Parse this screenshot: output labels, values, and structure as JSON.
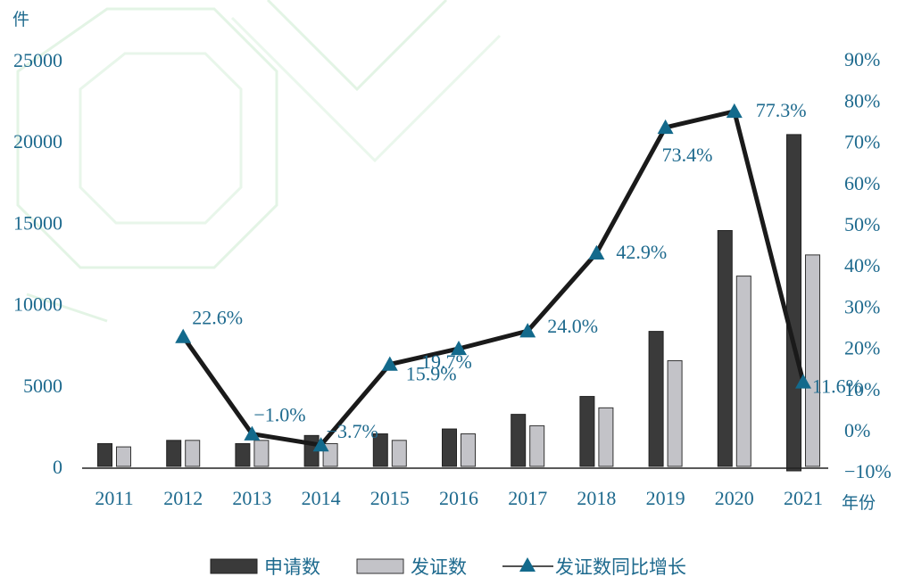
{
  "chart_data": {
    "type": "bar+line",
    "title": "",
    "categories": [
      "2011",
      "2012",
      "2013",
      "2014",
      "2015",
      "2016",
      "2017",
      "2018",
      "2019",
      "2020",
      "2021"
    ],
    "x_unit_label": "年份",
    "y_left_unit_label": "件",
    "y_left_range": [
      0,
      25000
    ],
    "y_left_ticks": [
      "25000",
      "20000",
      "15000",
      "10000",
      "5000",
      "0"
    ],
    "y_right_range": [
      -10,
      90
    ],
    "y_right_ticks": [
      "90%",
      "80%",
      "70%",
      "60%",
      "50%",
      "40%",
      "30%",
      "20%",
      "10%",
      "0%",
      "−10%"
    ],
    "series": [
      {
        "name": "申请数",
        "kind": "bar",
        "color": "#3a3a3a",
        "values": [
          1400,
          1600,
          1400,
          1900,
          2000,
          2300,
          3200,
          4300,
          8300,
          14500,
          20400
        ]
      },
      {
        "name": "发证数",
        "kind": "bar",
        "color": "#c3c3c8",
        "values": [
          1200,
          1600,
          1600,
          1400,
          1600,
          2000,
          2500,
          3600,
          6500,
          11700,
          13000
        ]
      },
      {
        "name": "发证数同比增长",
        "kind": "line",
        "axis": "right",
        "color": "#1a1a1a",
        "marker_color": "#136a8c",
        "values": [
          null,
          22.6,
          -1.0,
          -3.7,
          15.9,
          19.7,
          24.0,
          42.9,
          73.4,
          77.3,
          11.6
        ],
        "labels": [
          "",
          "22.6%",
          "−1.0%",
          "−3.7%",
          "15.9%",
          "19.7%",
          "24.0%",
          "42.9%",
          "73.4%",
          "77.3%",
          "11.6%"
        ]
      }
    ],
    "legend_position": "bottom",
    "grid": false,
    "colors": {
      "tick_text": "#1e6a8e",
      "pct_text": "#1e6a8e",
      "axis": "#222222"
    }
  }
}
